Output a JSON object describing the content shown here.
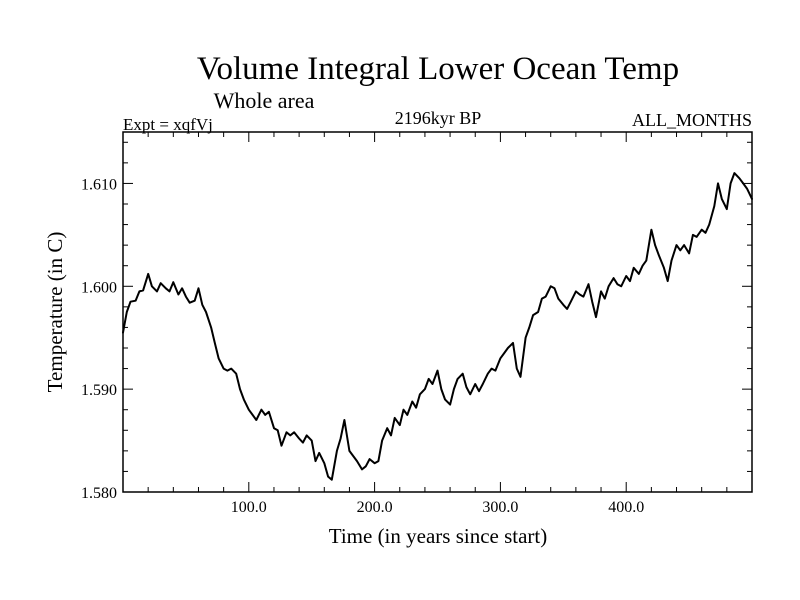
{
  "chart_data": {
    "type": "line",
    "title": "Volume Integral Lower Ocean Temp",
    "subtitle": "Whole area",
    "annotations": {
      "left": "Expt = xqfVj",
      "center": "2196kyr BP",
      "right": "ALL_MONTHS"
    },
    "xlabel": "Time (in years since start)",
    "ylabel": "Temperature (in C)",
    "xlim": [
      0,
      500
    ],
    "ylim": [
      1.58,
      1.615
    ],
    "x_ticks": [
      100,
      200,
      300,
      400
    ],
    "x_tick_labels": [
      "100.0",
      "200.0",
      "300.0",
      "400.0"
    ],
    "y_ticks": [
      1.58,
      1.59,
      1.6,
      1.61
    ],
    "y_tick_labels": [
      "1.580",
      "1.590",
      "1.600",
      "1.610"
    ],
    "grid": false,
    "series": [
      {
        "name": "Volume Integral Lower Ocean Temp",
        "color": "#000000",
        "x": [
          0,
          3,
          6,
          10,
          13,
          16,
          20,
          23,
          27,
          30,
          34,
          37,
          40,
          44,
          47,
          50,
          53,
          57,
          60,
          63,
          66,
          70,
          73,
          76,
          80,
          83,
          86,
          90,
          93,
          96,
          100,
          103,
          106,
          110,
          113,
          116,
          120,
          123,
          126,
          130,
          133,
          136,
          140,
          143,
          146,
          150,
          153,
          156,
          160,
          163,
          166,
          170,
          173,
          176,
          180,
          183,
          186,
          190,
          193,
          196,
          200,
          203,
          206,
          210,
          213,
          216,
          220,
          223,
          226,
          230,
          233,
          236,
          240,
          243,
          246,
          250,
          253,
          256,
          260,
          263,
          266,
          270,
          273,
          276,
          280,
          283,
          286,
          290,
          293,
          296,
          300,
          303,
          306,
          310,
          313,
          316,
          320,
          323,
          326,
          330,
          333,
          336,
          340,
          343,
          346,
          350,
          353,
          356,
          360,
          363,
          366,
          370,
          373,
          376,
          380,
          383,
          386,
          390,
          393,
          396,
          400,
          403,
          406,
          410,
          413,
          416,
          420,
          423,
          426,
          430,
          433,
          436,
          440,
          443,
          446,
          450,
          453,
          456,
          460,
          463,
          466,
          470,
          473,
          476,
          480,
          483,
          486,
          490,
          493,
          496,
          500
        ],
        "y": [
          1.5955,
          1.5975,
          1.5985,
          1.5986,
          1.5995,
          1.5996,
          1.6012,
          1.6,
          1.5995,
          1.6003,
          1.5998,
          1.5995,
          1.6004,
          1.5992,
          1.5998,
          1.599,
          1.5984,
          1.5986,
          1.5998,
          1.5982,
          1.5975,
          1.596,
          1.5945,
          1.593,
          1.592,
          1.5918,
          1.592,
          1.5915,
          1.59,
          1.589,
          1.588,
          1.5875,
          1.587,
          1.588,
          1.5875,
          1.5878,
          1.5862,
          1.586,
          1.5845,
          1.5858,
          1.5855,
          1.5858,
          1.5852,
          1.5848,
          1.5855,
          1.585,
          1.583,
          1.5838,
          1.5828,
          1.5815,
          1.5812,
          1.584,
          1.5852,
          1.587,
          1.584,
          1.5835,
          1.583,
          1.5822,
          1.5825,
          1.5832,
          1.5828,
          1.583,
          1.585,
          1.5862,
          1.5855,
          1.5872,
          1.5865,
          1.588,
          1.5875,
          1.5888,
          1.5882,
          1.5895,
          1.59,
          1.591,
          1.5905,
          1.5918,
          1.59,
          1.589,
          1.5885,
          1.59,
          1.591,
          1.5915,
          1.5902,
          1.5895,
          1.5905,
          1.5898,
          1.5905,
          1.5915,
          1.592,
          1.5918,
          1.593,
          1.5935,
          1.594,
          1.5945,
          1.592,
          1.5912,
          1.595,
          1.596,
          1.5972,
          1.5975,
          1.5988,
          1.599,
          1.6,
          1.5998,
          1.5988,
          1.5982,
          1.5978,
          1.5985,
          1.5995,
          1.5992,
          1.599,
          1.6002,
          1.5985,
          1.597,
          1.5995,
          1.5988,
          1.6,
          1.6008,
          1.6002,
          1.6,
          1.601,
          1.6005,
          1.6018,
          1.6012,
          1.602,
          1.6025,
          1.6055,
          1.604,
          1.603,
          1.6018,
          1.6005,
          1.6025,
          1.604,
          1.6035,
          1.604,
          1.6032,
          1.605,
          1.6048,
          1.6055,
          1.6052,
          1.606,
          1.6078,
          1.61,
          1.6085,
          1.6075,
          1.61,
          1.611,
          1.6105,
          1.61,
          1.6095,
          1.6085
        ]
      }
    ]
  }
}
